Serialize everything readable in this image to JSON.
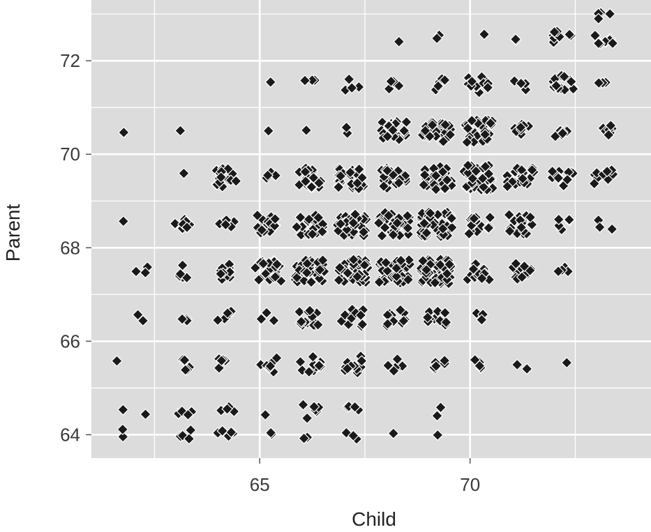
{
  "chart_data": {
    "type": "scatter",
    "title": "",
    "xlabel": "Child",
    "ylabel": "Parent",
    "xlim": [
      61.0,
      74.3
    ],
    "ylim": [
      63.5,
      73.3
    ],
    "x_ticks": [
      65,
      70
    ],
    "x_tick_labels": [
      "65",
      "70"
    ],
    "y_ticks": [
      64,
      66,
      68,
      70,
      72
    ],
    "y_tick_labels": [
      "64",
      "66",
      "68",
      "70",
      "72"
    ],
    "x_minor_ticks": [
      62.5,
      67.5,
      72.5
    ],
    "y_minor_ticks": [
      65,
      67,
      69,
      71,
      73
    ],
    "grid": true,
    "jitter": true,
    "colors": {
      "panel": "#dcdcdc",
      "grid": "#ffffff",
      "point": "#1a1a1a",
      "point_outline": "#ffffff"
    },
    "points": [
      {
        "x": 61.7,
        "y": 64.0,
        "n": 2
      },
      {
        "x": 61.7,
        "y": 64.5,
        "n": 1
      },
      {
        "x": 61.7,
        "y": 65.5,
        "n": 1
      },
      {
        "x": 61.7,
        "y": 68.5,
        "n": 1
      },
      {
        "x": 61.7,
        "y": 70.5,
        "n": 1
      },
      {
        "x": 62.2,
        "y": 64.5,
        "n": 1
      },
      {
        "x": 62.2,
        "y": 66.5,
        "n": 2
      },
      {
        "x": 62.2,
        "y": 67.5,
        "n": 3
      },
      {
        "x": 63.2,
        "y": 64.0,
        "n": 4
      },
      {
        "x": 63.2,
        "y": 64.5,
        "n": 4
      },
      {
        "x": 63.2,
        "y": 65.5,
        "n": 5
      },
      {
        "x": 63.2,
        "y": 66.5,
        "n": 3
      },
      {
        "x": 63.2,
        "y": 67.5,
        "n": 5
      },
      {
        "x": 63.2,
        "y": 68.5,
        "n": 7
      },
      {
        "x": 63.2,
        "y": 69.5,
        "n": 1
      },
      {
        "x": 63.2,
        "y": 70.5,
        "n": 1
      },
      {
        "x": 64.2,
        "y": 64.0,
        "n": 5
      },
      {
        "x": 64.2,
        "y": 64.5,
        "n": 4
      },
      {
        "x": 64.2,
        "y": 65.5,
        "n": 5
      },
      {
        "x": 64.2,
        "y": 66.5,
        "n": 5
      },
      {
        "x": 64.2,
        "y": 67.5,
        "n": 11
      },
      {
        "x": 64.2,
        "y": 68.5,
        "n": 5
      },
      {
        "x": 64.2,
        "y": 69.5,
        "n": 16
      },
      {
        "x": 65.2,
        "y": 64.0,
        "n": 2
      },
      {
        "x": 65.2,
        "y": 64.5,
        "n": 1
      },
      {
        "x": 65.2,
        "y": 65.5,
        "n": 9
      },
      {
        "x": 65.2,
        "y": 66.5,
        "n": 3
      },
      {
        "x": 65.2,
        "y": 67.5,
        "n": 24
      },
      {
        "x": 65.2,
        "y": 68.5,
        "n": 16
      },
      {
        "x": 65.2,
        "y": 69.5,
        "n": 4
      },
      {
        "x": 65.2,
        "y": 70.5,
        "n": 1
      },
      {
        "x": 65.2,
        "y": 71.5,
        "n": 1
      },
      {
        "x": 66.2,
        "y": 64.0,
        "n": 2
      },
      {
        "x": 66.2,
        "y": 64.5,
        "n": 6
      },
      {
        "x": 66.2,
        "y": 65.5,
        "n": 11
      },
      {
        "x": 66.2,
        "y": 66.5,
        "n": 14
      },
      {
        "x": 66.2,
        "y": 67.5,
        "n": 33
      },
      {
        "x": 66.2,
        "y": 68.5,
        "n": 25
      },
      {
        "x": 66.2,
        "y": 69.5,
        "n": 20
      },
      {
        "x": 66.2,
        "y": 70.5,
        "n": 1
      },
      {
        "x": 66.2,
        "y": 71.5,
        "n": 3
      },
      {
        "x": 67.2,
        "y": 64.0,
        "n": 3
      },
      {
        "x": 67.2,
        "y": 64.5,
        "n": 4
      },
      {
        "x": 67.2,
        "y": 65.5,
        "n": 12
      },
      {
        "x": 67.2,
        "y": 66.5,
        "n": 13
      },
      {
        "x": 67.2,
        "y": 67.5,
        "n": 38
      },
      {
        "x": 67.2,
        "y": 68.5,
        "n": 31
      },
      {
        "x": 67.2,
        "y": 69.5,
        "n": 27
      },
      {
        "x": 67.2,
        "y": 70.5,
        "n": 3
      },
      {
        "x": 67.2,
        "y": 71.5,
        "n": 4
      },
      {
        "x": 68.2,
        "y": 64.0,
        "n": 1
      },
      {
        "x": 68.2,
        "y": 65.5,
        "n": 6
      },
      {
        "x": 68.2,
        "y": 66.5,
        "n": 13
      },
      {
        "x": 68.2,
        "y": 67.5,
        "n": 36
      },
      {
        "x": 68.2,
        "y": 68.5,
        "n": 38
      },
      {
        "x": 68.2,
        "y": 69.5,
        "n": 24
      },
      {
        "x": 68.2,
        "y": 70.5,
        "n": 21
      },
      {
        "x": 68.2,
        "y": 71.5,
        "n": 4
      },
      {
        "x": 68.2,
        "y": 72.5,
        "n": 1
      },
      {
        "x": 69.2,
        "y": 64.0,
        "n": 1
      },
      {
        "x": 69.2,
        "y": 64.5,
        "n": 2
      },
      {
        "x": 69.2,
        "y": 65.5,
        "n": 6
      },
      {
        "x": 69.2,
        "y": 66.5,
        "n": 11
      },
      {
        "x": 69.2,
        "y": 67.5,
        "n": 48
      },
      {
        "x": 69.2,
        "y": 68.5,
        "n": 43
      },
      {
        "x": 69.2,
        "y": 69.5,
        "n": 33
      },
      {
        "x": 69.2,
        "y": 70.5,
        "n": 28
      },
      {
        "x": 69.2,
        "y": 71.5,
        "n": 5
      },
      {
        "x": 69.2,
        "y": 72.5,
        "n": 2
      },
      {
        "x": 70.2,
        "y": 65.5,
        "n": 5
      },
      {
        "x": 70.2,
        "y": 66.5,
        "n": 3
      },
      {
        "x": 70.2,
        "y": 67.5,
        "n": 13
      },
      {
        "x": 70.2,
        "y": 68.5,
        "n": 17
      },
      {
        "x": 70.2,
        "y": 69.5,
        "n": 38
      },
      {
        "x": 70.2,
        "y": 70.5,
        "n": 30
      },
      {
        "x": 70.2,
        "y": 71.5,
        "n": 12
      },
      {
        "x": 70.2,
        "y": 72.5,
        "n": 1
      },
      {
        "x": 71.2,
        "y": 65.5,
        "n": 2
      },
      {
        "x": 71.2,
        "y": 67.5,
        "n": 12
      },
      {
        "x": 71.2,
        "y": 68.5,
        "n": 20
      },
      {
        "x": 71.2,
        "y": 69.5,
        "n": 25
      },
      {
        "x": 71.2,
        "y": 70.5,
        "n": 8
      },
      {
        "x": 71.2,
        "y": 71.5,
        "n": 4
      },
      {
        "x": 71.2,
        "y": 72.5,
        "n": 2
      },
      {
        "x": 72.2,
        "y": 65.5,
        "n": 1
      },
      {
        "x": 72.2,
        "y": 67.5,
        "n": 4
      },
      {
        "x": 72.2,
        "y": 68.5,
        "n": 5
      },
      {
        "x": 72.2,
        "y": 69.5,
        "n": 12
      },
      {
        "x": 72.2,
        "y": 70.5,
        "n": 7
      },
      {
        "x": 72.2,
        "y": 71.5,
        "n": 13
      },
      {
        "x": 72.2,
        "y": 72.5,
        "n": 9
      },
      {
        "x": 73.2,
        "y": 68.5,
        "n": 3
      },
      {
        "x": 73.2,
        "y": 69.5,
        "n": 11
      },
      {
        "x": 73.2,
        "y": 70.5,
        "n": 7
      },
      {
        "x": 73.2,
        "y": 71.5,
        "n": 4
      },
      {
        "x": 73.2,
        "y": 72.5,
        "n": 9
      },
      {
        "x": 73.2,
        "y": 73.0,
        "n": 4
      }
    ]
  }
}
